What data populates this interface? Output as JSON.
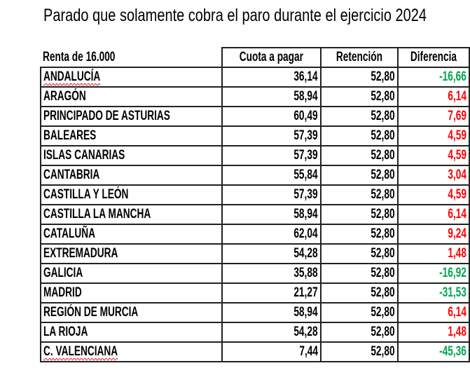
{
  "title": "Parado que solamente cobra el paro durante el ejercicio 2024",
  "colors": {
    "positive": "#ff0000",
    "negative": "#00a650"
  },
  "table": {
    "headers": [
      "Renta de 16.000",
      "Cuota a pagar",
      "Retención",
      "Diferencia"
    ],
    "rows": [
      {
        "region": "ANDALUCÍA",
        "cuota": "36,14",
        "retencion": "52,80",
        "diferencia": "-16,66",
        "spell": true
      },
      {
        "region": "ARAGÓN",
        "cuota": "58,94",
        "retencion": "52,80",
        "diferencia": "6,14"
      },
      {
        "region": "PRINCIPADO DE ASTURIAS",
        "cuota": "60,49",
        "retencion": "52,80",
        "diferencia": "7,69"
      },
      {
        "region": "BALEARES",
        "cuota": "57,39",
        "retencion": "52,80",
        "diferencia": "4,59"
      },
      {
        "region": "ISLAS CANARIAS",
        "cuota": "57,39",
        "retencion": "52,80",
        "diferencia": "4,59"
      },
      {
        "region": "CANTABRIA",
        "cuota": "55,84",
        "retencion": "52,80",
        "diferencia": "3,04"
      },
      {
        "region": "CASTILLA Y LEÓN",
        "cuota": "57,39",
        "retencion": "52,80",
        "diferencia": "4,59"
      },
      {
        "region": "CASTILLA LA MANCHA",
        "cuota": "58,94",
        "retencion": "52,80",
        "diferencia": "6,14"
      },
      {
        "region": "CATALUÑA",
        "cuota": "62,04",
        "retencion": "52,80",
        "diferencia": "9,24"
      },
      {
        "region": "EXTREMADURA",
        "cuota": "54,28",
        "retencion": "52,80",
        "diferencia": "1,48"
      },
      {
        "region": "GALICIA",
        "cuota": "35,88",
        "retencion": "52,80",
        "diferencia": "-16,92"
      },
      {
        "region": "MADRID",
        "cuota": "21,27",
        "retencion": "52,80",
        "diferencia": "-31,53"
      },
      {
        "region": "REGIÓN DE MURCIA",
        "cuota": "58,94",
        "retencion": "52,80",
        "diferencia": "6,14"
      },
      {
        "region": "LA RIOJA",
        "cuota": "54,28",
        "retencion": "52,80",
        "diferencia": "1,48"
      },
      {
        "region": "C. VALENCIANA",
        "cuota": "7,44",
        "retencion": "52,80",
        "diferencia": "-45,36",
        "spell": true
      }
    ]
  }
}
